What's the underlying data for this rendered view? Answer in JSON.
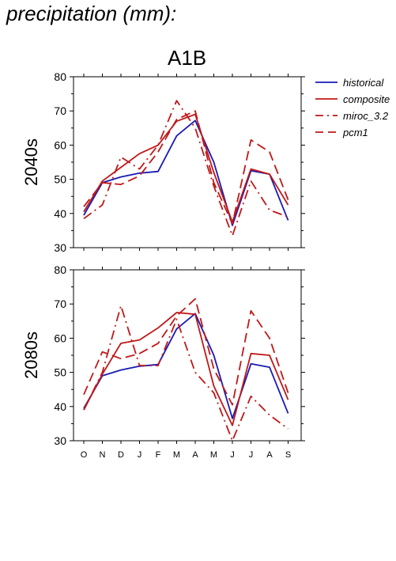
{
  "page": {
    "title": "precipitation (mm):"
  },
  "figure": {
    "scenario": "A1B"
  },
  "legend": {
    "items": [
      {
        "label": "historical",
        "color": "#1a1ab4",
        "dash": "solid"
      },
      {
        "label": "composite",
        "color": "#c01818",
        "dash": "solid"
      },
      {
        "label": "miroc_3.2",
        "color": "#c01818",
        "dash": "dashdot"
      },
      {
        "label": "pcm1",
        "color": "#c01818",
        "dash": "dashed"
      }
    ]
  },
  "chart_data": [
    {
      "type": "line",
      "panel_label": "2040s",
      "categories": [
        "O",
        "N",
        "D",
        "J",
        "F",
        "M",
        "A",
        "M",
        "J",
        "J",
        "A",
        "S"
      ],
      "ylim": [
        30,
        80
      ],
      "yticks": [
        30,
        40,
        50,
        60,
        70,
        80
      ],
      "series": [
        {
          "name": "historical",
          "color": "#1a1ab4",
          "dash": "solid",
          "values": [
            39.5,
            49,
            50.7,
            51.8,
            52.3,
            62.7,
            67.2,
            55,
            36.5,
            52.5,
            51.5,
            38
          ]
        },
        {
          "name": "composite",
          "color": "#c01818",
          "dash": "solid",
          "values": [
            40.5,
            49.5,
            53.5,
            57.5,
            60,
            67,
            69,
            52,
            37.5,
            53,
            51.5,
            42.5
          ]
        },
        {
          "name": "miroc_3.2",
          "color": "#c01818",
          "dash": "dashdot",
          "values": [
            38.5,
            42.5,
            56.5,
            53,
            60,
            73,
            65,
            48,
            33.5,
            49.5,
            41,
            39
          ]
        },
        {
          "name": "pcm1",
          "color": "#c01818",
          "dash": "dashed",
          "values": [
            42,
            49,
            48.5,
            51,
            58,
            67.5,
            70,
            49,
            37,
            61.5,
            58,
            44
          ]
        }
      ]
    },
    {
      "type": "line",
      "panel_label": "2080s",
      "categories": [
        "O",
        "N",
        "D",
        "J",
        "F",
        "M",
        "A",
        "M",
        "J",
        "J",
        "A",
        "S"
      ],
      "ylim": [
        30,
        80
      ],
      "yticks": [
        30,
        40,
        50,
        60,
        70,
        80
      ],
      "series": [
        {
          "name": "historical",
          "color": "#1a1ab4",
          "dash": "solid",
          "values": [
            39.5,
            49,
            50.7,
            51.8,
            52.3,
            62.7,
            67.2,
            55,
            36.5,
            52.5,
            51.5,
            38
          ]
        },
        {
          "name": "composite",
          "color": "#c01818",
          "dash": "solid",
          "values": [
            39,
            49.5,
            58.5,
            59.5,
            63,
            67.5,
            67,
            46,
            34.5,
            55.5,
            55,
            42
          ]
        },
        {
          "name": "miroc_3.2",
          "color": "#c01818",
          "dash": "dashdot",
          "values": [
            39,
            50,
            69.5,
            52,
            52,
            65.5,
            50,
            44,
            30,
            43,
            37.5,
            33.5
          ]
        },
        {
          "name": "pcm1",
          "color": "#c01818",
          "dash": "dashed",
          "values": [
            43.5,
            56,
            54,
            55.5,
            58.5,
            66.5,
            71.5,
            51,
            40.5,
            68,
            60,
            44
          ]
        }
      ]
    }
  ]
}
